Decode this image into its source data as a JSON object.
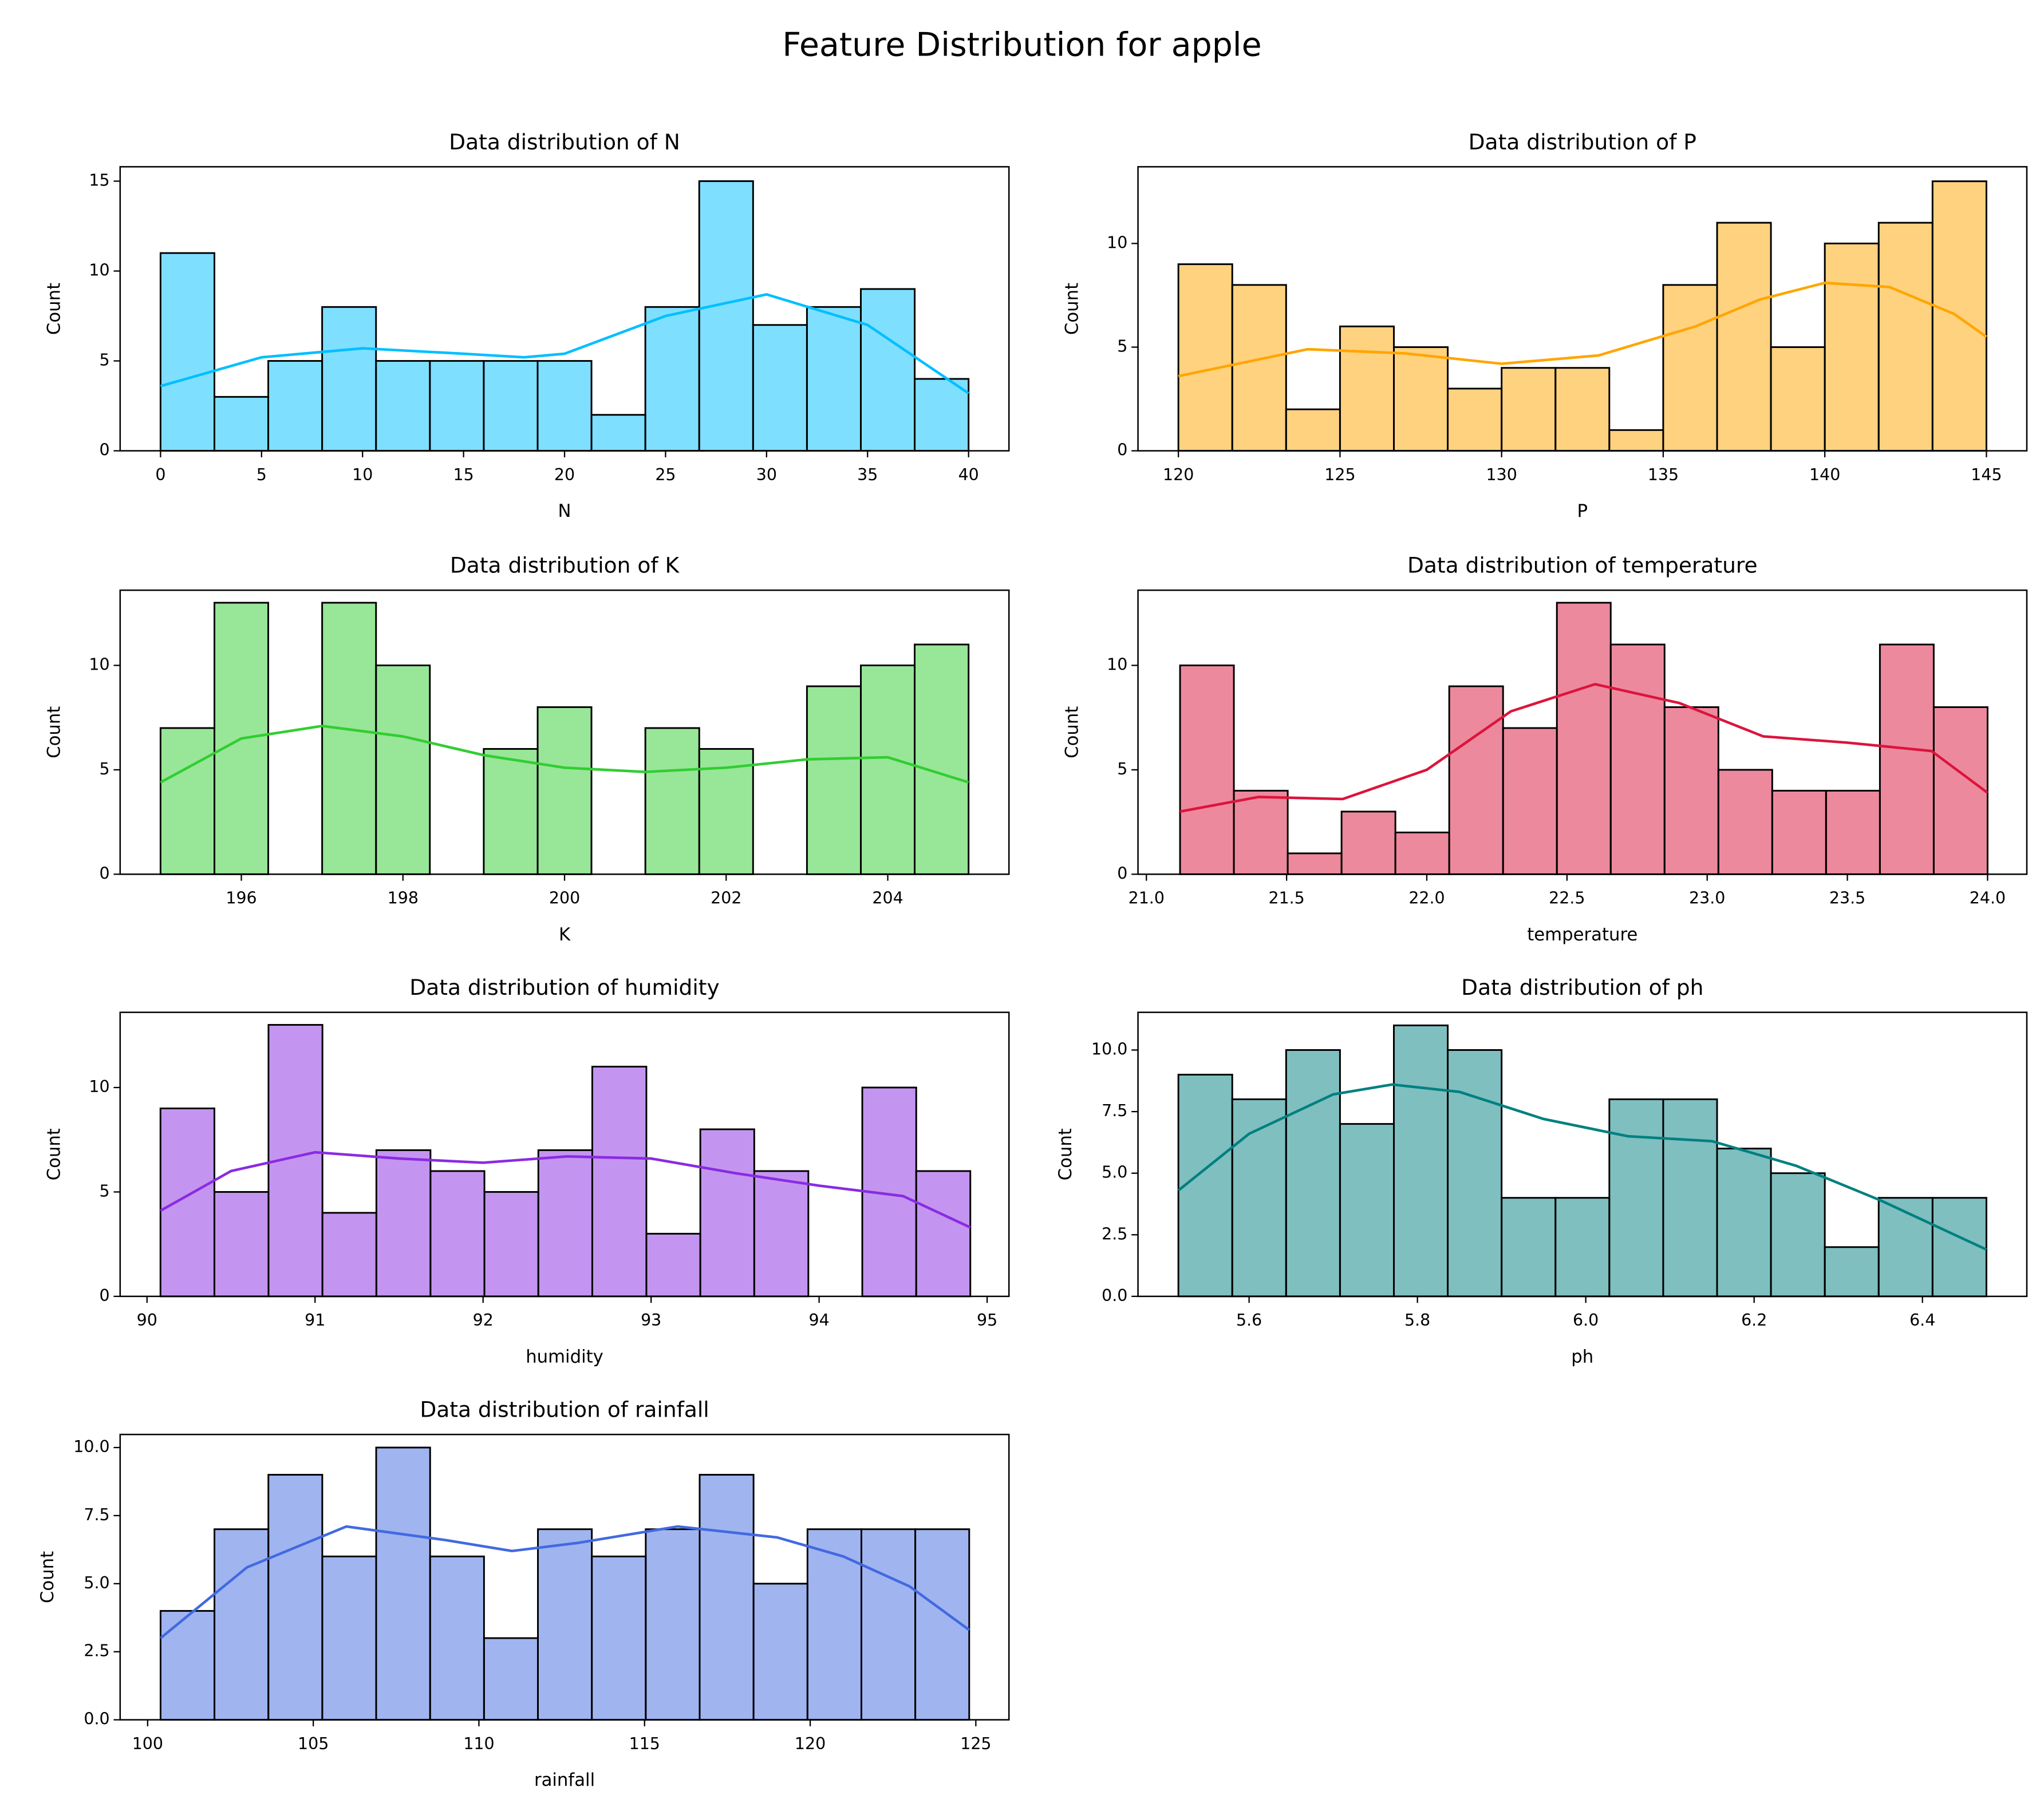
{
  "title": "Feature Distribution for apple",
  "chart_data": [
    {
      "type": "histogram",
      "title": "Data distribution of N",
      "xlabel": "N",
      "ylabel": "Count",
      "color": "#00bfff",
      "bins": [
        0,
        2.667,
        5.333,
        8,
        10.667,
        13.333,
        16,
        18.667,
        21.333,
        24,
        26.667,
        29.333,
        32,
        34.667,
        37.333,
        40
      ],
      "counts": [
        11,
        3,
        5,
        8,
        5,
        5,
        5,
        5,
        2,
        8,
        15,
        7,
        8,
        9,
        4
      ],
      "kde_x": [
        0,
        5,
        10,
        15,
        18,
        20,
        25,
        30,
        35,
        40
      ],
      "kde_y": [
        3.6,
        5.2,
        5.7,
        5.4,
        5.2,
        5.4,
        7.5,
        8.7,
        7.0,
        3.2
      ],
      "xlim": [
        -2,
        42
      ],
      "ylim": [
        0,
        15.8
      ],
      "xticks": [
        0,
        5,
        10,
        15,
        20,
        25,
        30,
        35,
        40
      ],
      "yticks": [
        0,
        5,
        10,
        15
      ]
    },
    {
      "type": "histogram",
      "title": "Data distribution of P",
      "xlabel": "P",
      "ylabel": "Count",
      "color": "#ffa500",
      "bins": [
        120,
        121.667,
        123.333,
        125,
        126.667,
        128.333,
        130,
        131.667,
        133.333,
        135,
        136.667,
        138.333,
        140,
        141.667,
        143.333,
        145
      ],
      "counts": [
        9,
        8,
        2,
        6,
        5,
        3,
        4,
        4,
        1,
        8,
        11,
        5,
        10,
        11,
        13
      ],
      "kde_x": [
        120,
        124,
        127,
        130,
        133,
        136,
        138,
        140,
        142,
        144,
        145
      ],
      "kde_y": [
        3.6,
        4.9,
        4.7,
        4.2,
        4.6,
        6.0,
        7.3,
        8.1,
        7.9,
        6.6,
        5.5
      ],
      "xlim": [
        118.75,
        146.25
      ],
      "ylim": [
        0,
        13.7
      ],
      "xticks": [
        120,
        125,
        130,
        135,
        140,
        145
      ],
      "yticks": [
        0,
        5,
        10
      ]
    },
    {
      "type": "histogram",
      "title": "Data distribution of K",
      "xlabel": "K",
      "ylabel": "Count",
      "color": "#32cd32",
      "bins": [
        195,
        195.667,
        196.333,
        197,
        197.667,
        198.333,
        199,
        199.667,
        200.333,
        201,
        201.667,
        202.333,
        203,
        203.667,
        204.333,
        205
      ],
      "counts": [
        7,
        13,
        0,
        13,
        10,
        0,
        6,
        8,
        0,
        7,
        6,
        0,
        9,
        10,
        11
      ],
      "kde_x": [
        195,
        196,
        197,
        198,
        199,
        200,
        201,
        202,
        203,
        204,
        205
      ],
      "kde_y": [
        4.4,
        6.5,
        7.1,
        6.6,
        5.7,
        5.1,
        4.9,
        5.1,
        5.5,
        5.6,
        4.4
      ],
      "xlim": [
        194.5,
        205.5
      ],
      "ylim": [
        0,
        13.6
      ],
      "xticks": [
        196,
        198,
        200,
        202,
        204
      ],
      "yticks": [
        0,
        5,
        10
      ]
    },
    {
      "type": "histogram",
      "title": "Data distribution of temperature",
      "xlabel": "temperature",
      "ylabel": "Count",
      "color": "#dc143c",
      "bins": [
        21.12,
        21.312,
        21.504,
        21.696,
        21.888,
        22.08,
        22.272,
        22.464,
        22.656,
        22.848,
        23.04,
        23.232,
        23.424,
        23.616,
        23.808,
        24.0
      ],
      "counts": [
        10,
        4,
        1,
        3,
        2,
        9,
        7,
        13,
        11,
        8,
        5,
        4,
        4,
        11,
        8
      ],
      "kde_x": [
        21.12,
        21.4,
        21.7,
        22.0,
        22.3,
        22.6,
        22.9,
        23.2,
        23.5,
        23.8,
        24.0
      ],
      "kde_y": [
        3.0,
        3.7,
        3.6,
        5.0,
        7.8,
        9.1,
        8.2,
        6.6,
        6.3,
        5.9,
        3.9
      ],
      "xlim": [
        20.97,
        24.14
      ],
      "ylim": [
        0,
        13.6
      ],
      "xticks": [
        {
          "value": 21,
          "label": "21.0"
        },
        21.5,
        {
          "value": 22,
          "label": "22.0"
        },
        22.5,
        {
          "value": 23,
          "label": "23.0"
        },
        23.5,
        {
          "value": 24,
          "label": "24.0"
        }
      ],
      "yticks": [
        0,
        5,
        10
      ]
    },
    {
      "type": "histogram",
      "title": "Data distribution of humidity",
      "xlabel": "humidity",
      "ylabel": "Count",
      "color": "#8a2be2",
      "bins": [
        90.08,
        90.401,
        90.723,
        91.044,
        91.365,
        91.687,
        92.008,
        92.329,
        92.65,
        92.972,
        93.293,
        93.614,
        93.936,
        94.257,
        94.578,
        94.9
      ],
      "counts": [
        9,
        5,
        13,
        4,
        7,
        6,
        5,
        7,
        11,
        3,
        8,
        6,
        0,
        10,
        6
      ],
      "kde_x": [
        90.08,
        90.5,
        91,
        91.5,
        92,
        92.5,
        93,
        93.5,
        94,
        94.5,
        94.9
      ],
      "kde_y": [
        4.1,
        6.0,
        6.9,
        6.6,
        6.4,
        6.7,
        6.6,
        5.9,
        5.3,
        4.8,
        3.3
      ],
      "xlim": [
        89.84,
        95.13
      ],
      "ylim": [
        0,
        13.6
      ],
      "xticks": [
        90,
        91,
        92,
        93,
        94,
        95
      ],
      "yticks": [
        0,
        5,
        10
      ]
    },
    {
      "type": "histogram",
      "title": "Data distribution of ph",
      "xlabel": "ph",
      "ylabel": "Count",
      "color": "#008080",
      "bins": [
        5.516,
        5.58,
        5.644,
        5.708,
        5.772,
        5.836,
        5.9,
        5.964,
        6.028,
        6.092,
        6.156,
        6.22,
        6.284,
        6.348,
        6.412,
        6.476
      ],
      "counts": [
        9,
        8,
        10,
        7,
        11,
        10,
        4,
        4,
        8,
        8,
        6,
        5,
        2,
        4,
        4
      ],
      "kde_x": [
        5.516,
        5.6,
        5.7,
        5.77,
        5.85,
        5.95,
        6.05,
        6.15,
        6.25,
        6.35,
        6.476
      ],
      "kde_y": [
        4.3,
        6.6,
        8.2,
        8.6,
        8.3,
        7.2,
        6.5,
        6.3,
        5.3,
        3.9,
        1.9
      ],
      "xlim": [
        5.468,
        6.524
      ],
      "ylim": [
        0,
        11.53
      ],
      "xticks": [
        5.6,
        5.8,
        {
          "value": 6,
          "label": "6.0"
        },
        6.2,
        6.4
      ],
      "yticks": [
        {
          "value": 0,
          "label": "0.0"
        },
        2.5,
        {
          "value": 5,
          "label": "5.0"
        },
        7.5,
        {
          "value": 10,
          "label": "10.0"
        }
      ]
    },
    {
      "type": "histogram",
      "title": "Data distribution of rainfall",
      "xlabel": "rainfall",
      "ylabel": "Count",
      "color": "#4169e1",
      "bins": [
        100.39,
        102.017,
        103.645,
        105.272,
        106.899,
        108.527,
        110.154,
        111.781,
        113.408,
        115.036,
        116.663,
        118.29,
        119.918,
        121.545,
        123.172,
        124.8
      ],
      "counts": [
        4,
        7,
        9,
        6,
        10,
        6,
        3,
        7,
        6,
        7,
        9,
        5,
        7,
        7,
        7
      ],
      "kde_x": [
        100.39,
        103,
        106,
        109,
        111,
        113,
        116,
        119,
        121,
        123,
        124.8
      ],
      "kde_y": [
        3.0,
        5.6,
        7.1,
        6.6,
        6.2,
        6.5,
        7.1,
        6.7,
        6.0,
        4.9,
        3.3
      ],
      "xlim": [
        99.17,
        126.0
      ],
      "ylim": [
        0,
        10.48
      ],
      "xticks": [
        100,
        105,
        110,
        115,
        120,
        125
      ],
      "yticks": [
        {
          "value": 0,
          "label": "0.0"
        },
        2.5,
        {
          "value": 5,
          "label": "5.0"
        },
        7.5,
        {
          "value": 10,
          "label": "10.0"
        }
      ]
    }
  ]
}
